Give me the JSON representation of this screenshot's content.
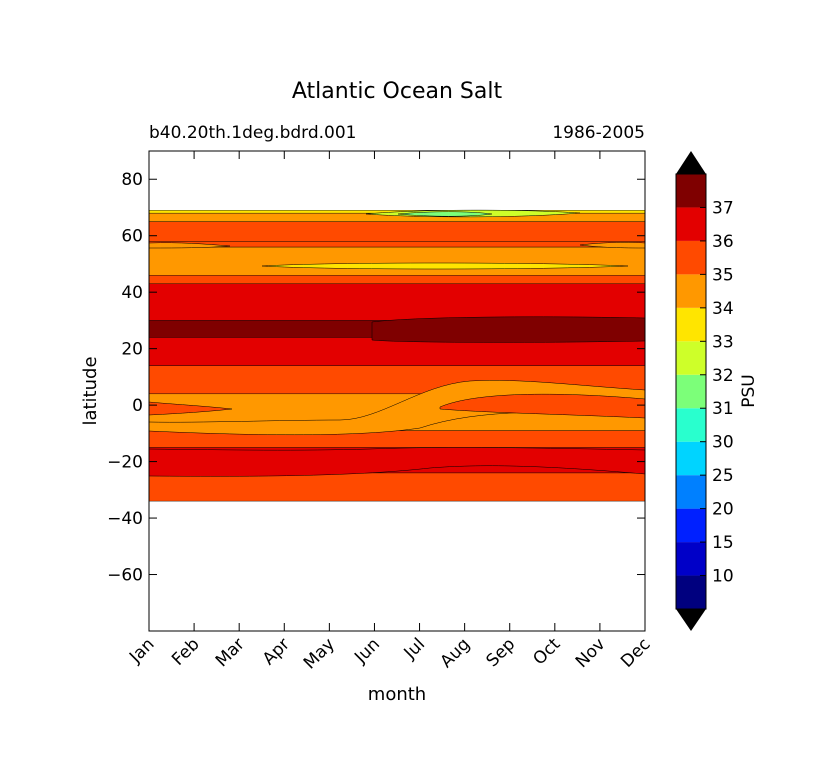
{
  "chart_data": {
    "type": "heatmap",
    "title": "Atlantic Ocean Salt",
    "subtitle_left": "b40.20th.1deg.bdrd.001",
    "subtitle_right": "1986-2005",
    "xlabel": "month",
    "ylabel": "latitude",
    "x_ticks": [
      "Jan",
      "Feb",
      "Mar",
      "Apr",
      "May",
      "Jun",
      "Jul",
      "Aug",
      "Sep",
      "Oct",
      "Nov",
      "Dec"
    ],
    "ylim": [
      -80,
      90
    ],
    "y_ticks": [
      80,
      60,
      40,
      20,
      0,
      -20,
      -40,
      -60
    ],
    "y_tick_labels": [
      "80",
      "60",
      "40",
      "20",
      "0",
      "−20",
      "−40",
      "−60"
    ],
    "data_lat_range": [
      -34,
      69
    ],
    "colorbar": {
      "label": "PSU",
      "levels": [
        10,
        15,
        20,
        25,
        30,
        31,
        32,
        33,
        34,
        35,
        36,
        37
      ],
      "tick_labels": [
        "10",
        "15",
        "20",
        "25",
        "30",
        "31",
        "32",
        "33",
        "34",
        "35",
        "36",
        "37"
      ],
      "colors": [
        "#00007f",
        "#0000c8",
        "#0020ff",
        "#0080ff",
        "#00d4ff",
        "#29ffce",
        "#7cff79",
        "#ceff29",
        "#ffe500",
        "#ff9800",
        "#ff4a00",
        "#e30000",
        "#7f0000"
      ],
      "extend": "both"
    },
    "bands": [
      {
        "lat_south": -34,
        "lat_north": -24,
        "salinity_class": "35-36"
      },
      {
        "lat_south": -24,
        "lat_north": -15,
        "salinity_class": "36-37"
      },
      {
        "lat_south": -15,
        "lat_north": -9,
        "salinity_class": "35-36"
      },
      {
        "lat_south": -9,
        "lat_north": 4,
        "salinity_class": "34-35"
      },
      {
        "lat_south": 4,
        "lat_north": 14,
        "salinity_class": "35-36"
      },
      {
        "lat_south": 14,
        "lat_north": 24,
        "salinity_class": "36-37"
      },
      {
        "lat_south": 24,
        "lat_north": 30,
        "salinity_class": ">37"
      },
      {
        "lat_south": 30,
        "lat_north": 43,
        "salinity_class": "36-37"
      },
      {
        "lat_south": 43,
        "lat_north": 46,
        "salinity_class": "35-36"
      },
      {
        "lat_south": 46,
        "lat_north": 56,
        "salinity_class": "34-35"
      },
      {
        "lat_south": 56,
        "lat_north": 58,
        "salinity_class": "35-36"
      },
      {
        "lat_south": 58,
        "lat_north": 65,
        "salinity_class": "35-36"
      },
      {
        "lat_south": 65,
        "lat_north": 68,
        "salinity_class": "34-35"
      },
      {
        "lat_south": 68,
        "lat_north": 69,
        "salinity_class": "33-34"
      }
    ]
  }
}
